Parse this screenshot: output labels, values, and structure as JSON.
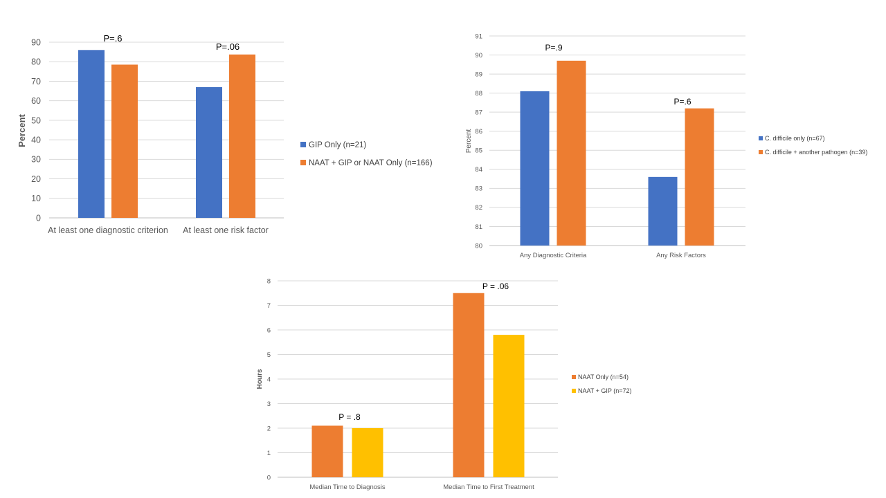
{
  "chart_data": [
    {
      "type": "bar",
      "categories": [
        "At least one diagnostic criterion",
        "At least one risk factor"
      ],
      "series": [
        {
          "name": "GIP Only (n=21)",
          "values": [
            86,
            67
          ],
          "color": "#4472C4"
        },
        {
          "name": "NAAT + GIP or NAAT Only (n=166)",
          "values": [
            78.5,
            83.7
          ],
          "color": "#ED7D31"
        }
      ],
      "annotations": [
        "P=.6",
        "P=.06"
      ],
      "xlabel": "",
      "ylabel": "Percent",
      "ylim": [
        0,
        90
      ],
      "yticks": [
        "0",
        "10",
        "20",
        "30",
        "40",
        "50",
        "60",
        "70",
        "80",
        "90"
      ],
      "grid": true,
      "legend": "right"
    },
    {
      "type": "bar",
      "categories": [
        "Any Diagnostic Criteria",
        "Any Risk Factors"
      ],
      "series": [
        {
          "name": "C. difficile only (n=67)",
          "values": [
            88.1,
            83.6
          ],
          "color": "#4472C4"
        },
        {
          "name": "C. difficile + another pathogen (n=39)",
          "values": [
            89.7,
            87.2
          ],
          "color": "#ED7D31"
        }
      ],
      "annotations": [
        "P=.9",
        "P=.6"
      ],
      "xlabel": "",
      "ylabel": "Percent",
      "ylim": [
        80,
        91
      ],
      "yticks": [
        "80",
        "81",
        "82",
        "83",
        "84",
        "85",
        "86",
        "87",
        "88",
        "89",
        "90",
        "91"
      ],
      "grid": true,
      "legend": "right"
    },
    {
      "type": "bar",
      "categories": [
        "Median Time to Diagnosis",
        "Median Time to First Treatment"
      ],
      "series": [
        {
          "name": "NAAT Only (n=54)",
          "values": [
            2.1,
            7.5
          ],
          "color": "#ED7D31"
        },
        {
          "name": "NAAT + GIP (n=72)",
          "values": [
            2.0,
            5.8
          ],
          "color": "#FFC000"
        }
      ],
      "annotations": [
        "P = .8",
        "P = .06"
      ],
      "xlabel": "",
      "ylabel": "Hours",
      "ylim": [
        0,
        8
      ],
      "yticks": [
        "0",
        "1",
        "2",
        "3",
        "4",
        "5",
        "6",
        "7",
        "8"
      ],
      "grid": true,
      "legend": "right"
    }
  ]
}
